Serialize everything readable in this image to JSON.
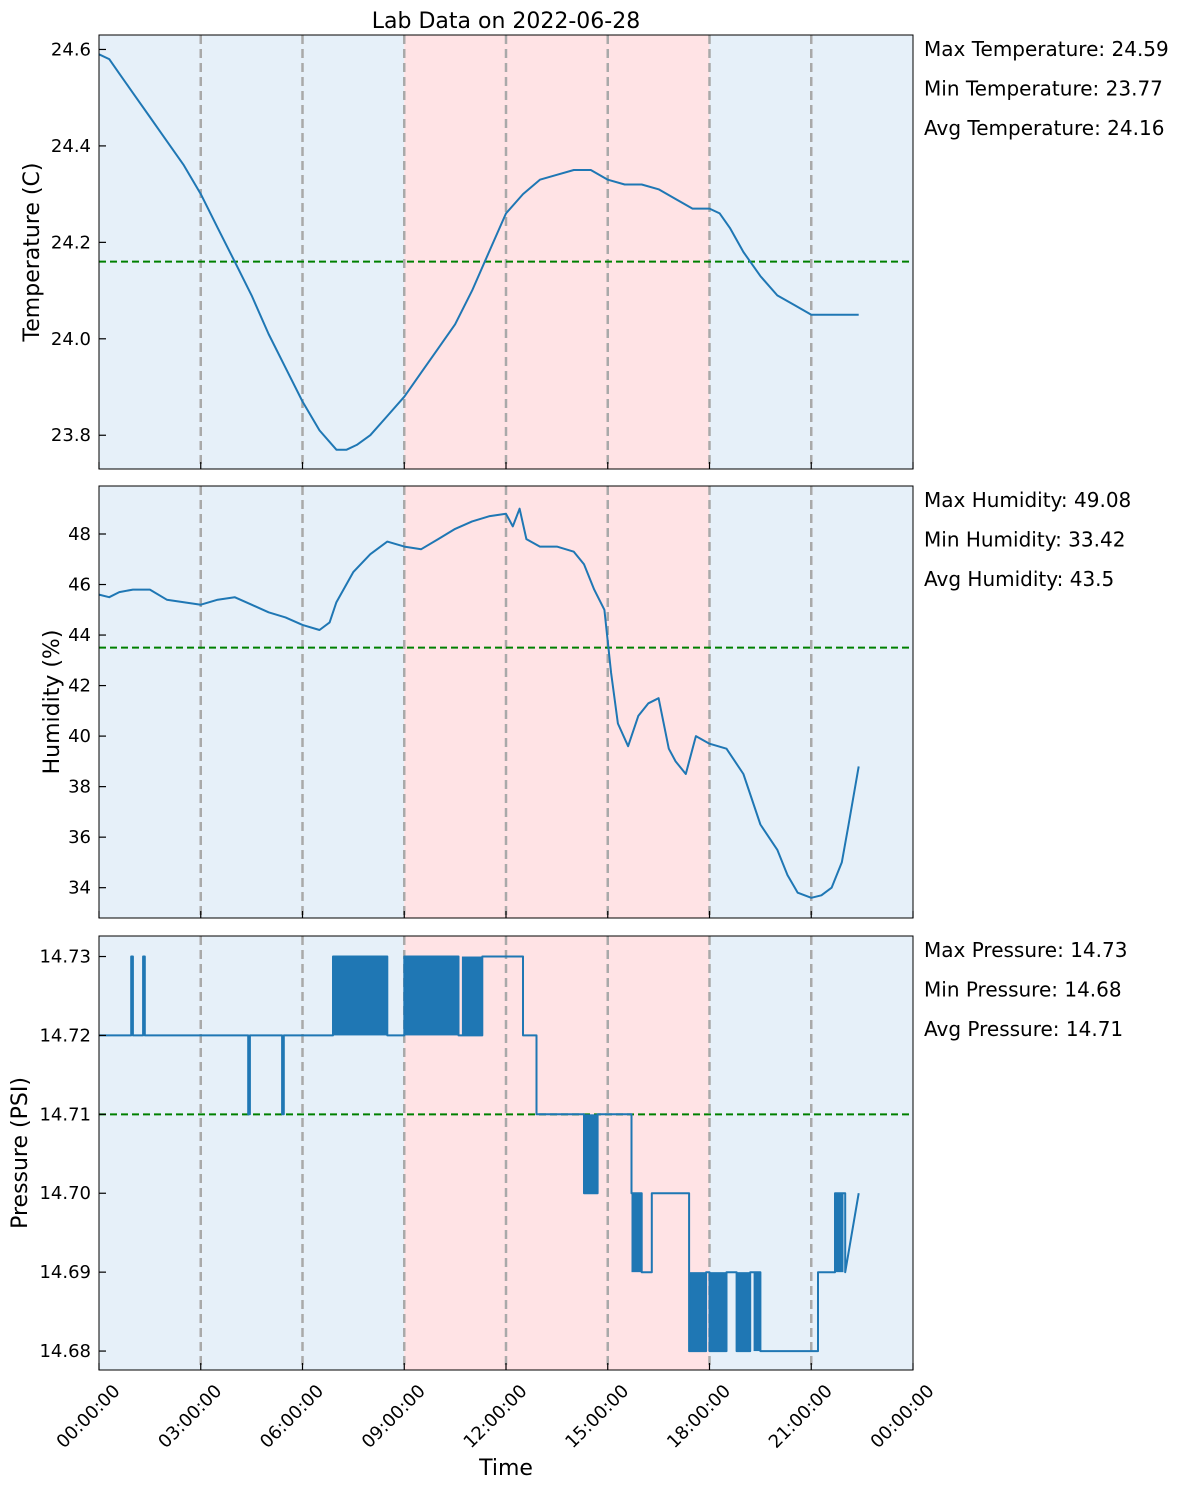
{
  "title": "Lab Data on 2022-06-28",
  "colors": {
    "line": "#1f77b4",
    "average": "#008000",
    "grid": "#a9a9a9",
    "night": "#e6f0f9",
    "day": "#ffe3e5"
  },
  "chart_data": [
    {
      "type": "line",
      "ylabel": "Temperature (C)",
      "xlabel": "",
      "ylim": [
        23.73,
        24.63
      ],
      "yticks": [
        23.8,
        24.0,
        24.2,
        24.4,
        24.6
      ],
      "tick_decimals": 1,
      "average": 24.16,
      "stats": [
        "Max Temperature: 24.59",
        "Min Temperature: 23.77",
        "Avg Temperature: 24.16"
      ],
      "series": [
        {
          "x": [
            0,
            0.3,
            0.6,
            1.0,
            1.5,
            2.0,
            2.5,
            3.0,
            3.5,
            4.0,
            4.5,
            5.0,
            5.5,
            6.0,
            6.5,
            7.0,
            7.3,
            7.6,
            8.0,
            8.5,
            9.0,
            9.5,
            10.0,
            10.5,
            11.0,
            11.5,
            12.0,
            12.5,
            13.0,
            13.5,
            14.0,
            14.5,
            15.0,
            15.5,
            16.0,
            16.5,
            17.0,
            17.5,
            18.0,
            18.3,
            18.6,
            19.0,
            19.5,
            20.0,
            20.5,
            21.0,
            21.5,
            22.0,
            22.4
          ],
          "y": [
            24.59,
            24.58,
            24.55,
            24.51,
            24.46,
            24.41,
            24.36,
            24.3,
            24.23,
            24.16,
            24.09,
            24.01,
            23.94,
            23.87,
            23.81,
            23.77,
            23.77,
            23.78,
            23.8,
            23.84,
            23.88,
            23.93,
            23.98,
            24.03,
            24.1,
            24.18,
            24.26,
            24.3,
            24.33,
            24.34,
            24.35,
            24.35,
            24.33,
            24.32,
            24.32,
            24.31,
            24.29,
            24.27,
            24.27,
            24.26,
            24.23,
            24.18,
            24.13,
            24.09,
            24.07,
            24.05,
            24.05,
            24.05,
            24.05
          ]
        }
      ]
    },
    {
      "type": "line",
      "ylabel": "Humidity (%)",
      "xlabel": "",
      "ylim": [
        32.8,
        49.9
      ],
      "yticks": [
        34,
        36,
        38,
        40,
        42,
        44,
        46,
        48
      ],
      "tick_decimals": 0,
      "average": 43.5,
      "stats": [
        "Max Humidity: 49.08",
        "Min Humidity: 33.42",
        "Avg Humidity: 43.5"
      ],
      "series": [
        {
          "x": [
            0,
            0.3,
            0.6,
            1.0,
            1.5,
            2.0,
            2.5,
            3.0,
            3.5,
            4.0,
            4.5,
            5.0,
            5.5,
            6.0,
            6.5,
            6.8,
            7.0,
            7.5,
            8.0,
            8.5,
            9.0,
            9.5,
            10.0,
            10.5,
            11.0,
            11.5,
            12.0,
            12.2,
            12.4,
            12.6,
            13.0,
            13.5,
            14.0,
            14.3,
            14.6,
            14.9,
            15.1,
            15.3,
            15.6,
            15.9,
            16.2,
            16.5,
            16.8,
            17.0,
            17.3,
            17.6,
            18.0,
            18.5,
            19.0,
            19.5,
            20.0,
            20.3,
            20.6,
            21.0,
            21.3,
            21.6,
            21.9,
            22.1,
            22.4
          ],
          "y": [
            45.6,
            45.5,
            45.7,
            45.8,
            45.8,
            45.4,
            45.3,
            45.2,
            45.4,
            45.5,
            45.2,
            44.9,
            44.7,
            44.4,
            44.2,
            44.5,
            45.3,
            46.5,
            47.2,
            47.7,
            47.5,
            47.4,
            47.8,
            48.2,
            48.5,
            48.7,
            48.8,
            48.3,
            49.0,
            47.8,
            47.5,
            47.5,
            47.3,
            46.8,
            45.8,
            45.0,
            42.5,
            40.5,
            39.6,
            40.8,
            41.3,
            41.5,
            39.5,
            39.0,
            38.5,
            40.0,
            39.7,
            39.5,
            38.5,
            36.5,
            35.5,
            34.5,
            33.8,
            33.6,
            33.7,
            34.0,
            35.0,
            36.5,
            38.8
          ]
        }
      ]
    },
    {
      "type": "line",
      "ylabel": "Pressure (PSI)",
      "xlabel": "Time",
      "ylim": [
        14.6776,
        14.7326
      ],
      "yticks": [
        14.68,
        14.69,
        14.7,
        14.71,
        14.72,
        14.73
      ],
      "tick_decimals": 2,
      "average": 14.71,
      "stats": [
        "Max Pressure: 14.73",
        "Min Pressure: 14.68",
        "Avg Pressure: 14.71"
      ],
      "series": [
        {
          "x": [
            0,
            0.95,
            0.95,
            1.0,
            1.0,
            1.3,
            1.3,
            1.35,
            1.35,
            1.4,
            1.4,
            4.4,
            4.4,
            4.45,
            4.45,
            5.4,
            5.4,
            5.45,
            5.45,
            6.9,
            6.9,
            8.5,
            8.5,
            9.0,
            9.0,
            10.6,
            10.6,
            11.3,
            11.3,
            12.5,
            12.5,
            12.9,
            12.9,
            14.3,
            14.3,
            14.7,
            14.7,
            15.7,
            15.7,
            16.0,
            16.0,
            16.3,
            16.3,
            17.4,
            17.4,
            17.9,
            17.9,
            18.0,
            18.0,
            18.5,
            18.5,
            18.8,
            18.8,
            19.2,
            19.2,
            19.5,
            19.5,
            21.2,
            21.2,
            21.7,
            21.7,
            22.0,
            22.0,
            22.4
          ],
          "y": [
            14.72,
            14.72,
            14.73,
            14.73,
            14.72,
            14.72,
            14.73,
            14.73,
            14.72,
            14.72,
            14.72,
            14.72,
            14.71,
            14.71,
            14.72,
            14.72,
            14.71,
            14.71,
            14.72,
            14.72,
            14.73,
            14.73,
            14.72,
            14.72,
            14.73,
            14.73,
            14.72,
            14.72,
            14.73,
            14.73,
            14.72,
            14.72,
            14.71,
            14.71,
            14.7,
            14.7,
            14.71,
            14.71,
            14.7,
            14.7,
            14.69,
            14.69,
            14.7,
            14.7,
            14.68,
            14.68,
            14.69,
            14.69,
            14.68,
            14.68,
            14.69,
            14.69,
            14.68,
            14.68,
            14.69,
            14.69,
            14.68,
            14.68,
            14.69,
            14.69,
            14.7,
            14.7,
            14.69,
            14.7
          ]
        }
      ],
      "dense_bands": [
        {
          "x0": 6.9,
          "x1": 8.5,
          "low": 14.72,
          "high": 14.73
        },
        {
          "x0": 9.0,
          "x1": 10.6,
          "low": 14.72,
          "high": 14.73
        },
        {
          "x0": 10.7,
          "x1": 11.3,
          "low": 14.72,
          "high": 14.73
        },
        {
          "x0": 14.3,
          "x1": 14.7,
          "low": 14.7,
          "high": 14.71
        },
        {
          "x0": 15.7,
          "x1": 16.0,
          "low": 14.69,
          "high": 14.7
        },
        {
          "x0": 17.4,
          "x1": 17.9,
          "low": 14.68,
          "high": 14.69
        },
        {
          "x0": 18.0,
          "x1": 18.5,
          "low": 14.68,
          "high": 14.69
        },
        {
          "x0": 18.8,
          "x1": 19.2,
          "low": 14.68,
          "high": 14.69
        },
        {
          "x0": 19.3,
          "x1": 19.5,
          "low": 14.68,
          "high": 14.69
        },
        {
          "x0": 21.7,
          "x1": 21.95,
          "low": 14.69,
          "high": 14.7
        }
      ]
    }
  ],
  "xaxis": {
    "range_hours": [
      0,
      24
    ],
    "tick_hours": [
      0,
      3,
      6,
      9,
      12,
      15,
      18,
      21,
      24
    ],
    "tick_labels": [
      "00:00:00",
      "03:00:00",
      "06:00:00",
      "09:00:00",
      "12:00:00",
      "15:00:00",
      "18:00:00",
      "21:00:00",
      "00:00:00"
    ],
    "day_span_hours": [
      9,
      18
    ]
  }
}
